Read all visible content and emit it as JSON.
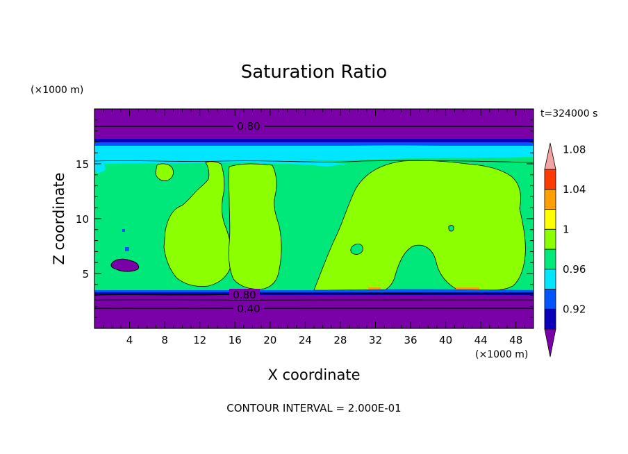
{
  "chart_data": {
    "type": "contour",
    "title": "Saturation Ratio",
    "xlabel": "X coordinate",
    "ylabel": "Z coordinate",
    "x_unit": "(×1000 m)",
    "y_unit": "(×1000 m)",
    "xlim": [
      0,
      50
    ],
    "ylim": [
      0,
      20
    ],
    "x_ticks": [
      "4",
      "8",
      "12",
      "16",
      "20",
      "24",
      "28",
      "32",
      "36",
      "40",
      "44",
      "48"
    ],
    "x_tick_values": [
      4,
      8,
      12,
      16,
      20,
      24,
      28,
      32,
      36,
      40,
      44,
      48
    ],
    "y_ticks": [
      "5",
      "10",
      "15"
    ],
    "y_tick_values": [
      5,
      10,
      15
    ],
    "time_label": "t=324000 s",
    "footer": "CONTOUR INTERVAL = 2.000E-01",
    "contour_labels": [
      {
        "text": "0.80",
        "x": 17.5,
        "z": 18.2
      },
      {
        "text": "0.80",
        "x": 17.0,
        "z": 3.0
      },
      {
        "text": "0.40",
        "x": 17.5,
        "z": 1.8
      }
    ],
    "colorbar": {
      "labels": [
        "1.08",
        "1.04",
        "1",
        "0.96",
        "0.92"
      ],
      "levels": [
        1.08,
        1.04,
        1.0,
        0.96,
        0.92
      ],
      "colors": [
        "#7a00a8",
        "#0a00b8",
        "#0055ff",
        "#00e6ff",
        "#00e87a",
        "#8cff00",
        "#ffff00",
        "#ffa000",
        "#ff3c00",
        "#f2a3a3"
      ]
    },
    "layers": {
      "below_cloud_dark": "#7a00a8",
      "background_band": "#00e87a",
      "cloud_region": "#8cff00",
      "upper_layer_cyan": "#00e6ff",
      "upper_layer_blue": "#0055ff",
      "upper_layer_navy": "#0a00b8"
    }
  }
}
